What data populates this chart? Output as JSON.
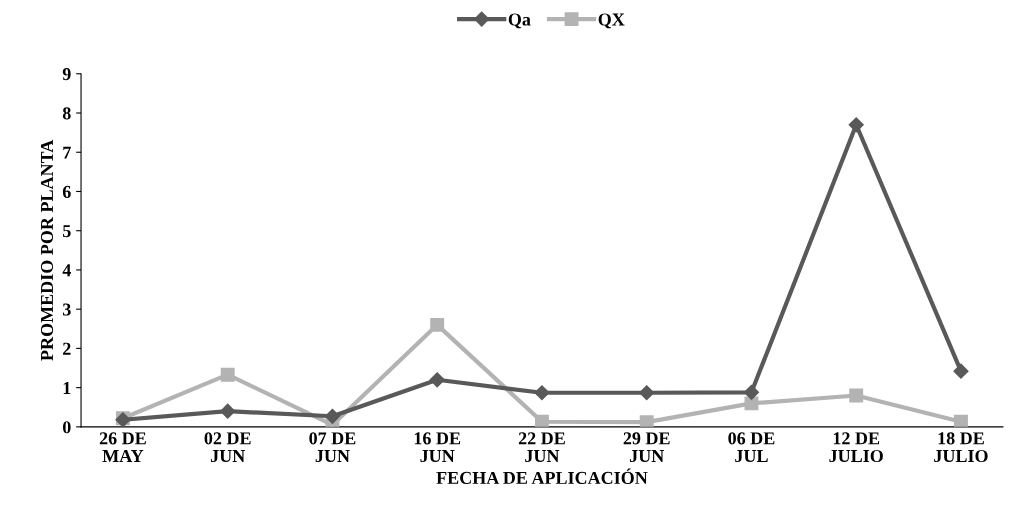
{
  "chart_data": {
    "type": "line",
    "xlabel": "FECHA DE APLICACIÓN",
    "ylabel": "PROMEDIO POR PLANTA",
    "categories": [
      "26 DE\nMAY",
      "02 DE\nJUN",
      "07 DE\nJUN",
      "16 DE\nJUN",
      "22 DE\nJUN",
      "29 DE\nJUN",
      "06 DE\nJUL",
      "12 DE\nJULIO",
      "18 DE\nJULIO"
    ],
    "series": [
      {
        "name": "Qa",
        "color": "#595959",
        "marker": "diamond",
        "values": [
          0.18,
          0.4,
          0.27,
          1.2,
          0.87,
          0.87,
          0.88,
          7.7,
          1.42
        ]
      },
      {
        "name": "QX",
        "color": "#b3b3b3",
        "marker": "square",
        "values": [
          0.22,
          1.33,
          0.05,
          2.6,
          0.13,
          0.12,
          0.6,
          0.8,
          0.13
        ]
      }
    ],
    "ylim": [
      0,
      9
    ],
    "yticks": [
      0,
      1,
      2,
      3,
      4,
      5,
      6,
      7,
      8,
      9
    ],
    "grid": false,
    "legend": "top"
  }
}
